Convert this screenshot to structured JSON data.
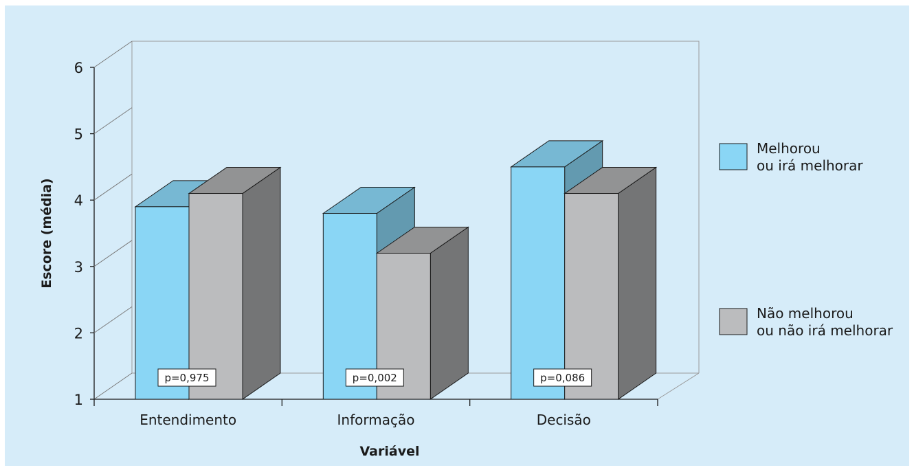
{
  "chart_data": {
    "type": "bar",
    "style": "3d",
    "categories": [
      "Entendimento",
      "Informação",
      "Decisão"
    ],
    "series": [
      {
        "name": "Melhorou\nou irá melhorar",
        "values": [
          3.9,
          3.8,
          4.5
        ],
        "color": "#8ad6f5"
      },
      {
        "name": "Não melhorou\nou não irá melhorar",
        "values": [
          4.1,
          3.2,
          4.1
        ],
        "color": "#bbbcbe"
      }
    ],
    "annotations": [
      "p=0,975",
      "p=0,002",
      "p=0,086"
    ],
    "xlabel": "Variável",
    "ylabel": "Escore (média)",
    "ylim": [
      1,
      6
    ],
    "yticks": [
      1,
      2,
      3,
      4,
      5,
      6
    ],
    "legend_position": "right",
    "background": "#d6ecf9"
  }
}
